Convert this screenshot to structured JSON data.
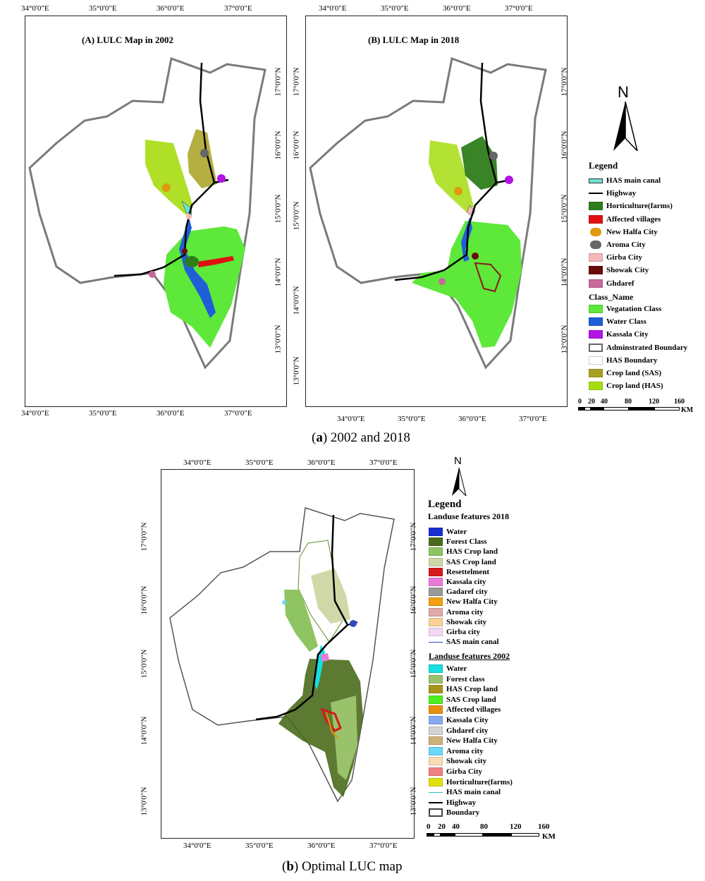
{
  "figure_a": {
    "caption_letter": "a",
    "caption_text": " 2002 and 2018",
    "maps": [
      {
        "title": "(A) LULC Map in 2002"
      },
      {
        "title": "(B) LULC Map in 2018"
      }
    ],
    "lon_ticks": [
      "34°0'0\"E",
      "35°0'0\"E",
      "36°0'0\"E",
      "37°0'0\"E"
    ],
    "lat_ticks": [
      "17°0'0\"N",
      "16°0'0\"N",
      "15°0'0\"N",
      "14°0'0\"N",
      "13°0'0\"N"
    ],
    "north": "N",
    "legend": {
      "title": "Legend",
      "items": [
        {
          "label": "HAS main canal",
          "kind": "canal",
          "color": "#6fe0d0"
        },
        {
          "label": "Highway",
          "kind": "line",
          "color": "#000000"
        },
        {
          "label": "Horticulture(farms)",
          "kind": "patch",
          "color": "#2e7d1a"
        },
        {
          "label": "Affected villages",
          "kind": "patch",
          "color": "#e01010"
        },
        {
          "label": "New Halfa City",
          "kind": "dot",
          "color": "#e09a10"
        },
        {
          "label": "Aroma City",
          "kind": "dot",
          "color": "#666666"
        },
        {
          "label": "Girba City",
          "kind": "patch",
          "color": "#f4b8b8"
        },
        {
          "label": "Showak City",
          "kind": "patch",
          "color": "#6b0b0b"
        },
        {
          "label": "Ghdaref",
          "kind": "patch",
          "color": "#c8699a"
        },
        {
          "label": "Class_Name",
          "kind": "header",
          "color": ""
        },
        {
          "label": "Vegatation Class",
          "kind": "patch",
          "color": "#5de83a"
        },
        {
          "label": "Water Class",
          "kind": "patch",
          "color": "#1f5fd6"
        },
        {
          "label": "Kassala City",
          "kind": "patch",
          "color": "#b214e6"
        },
        {
          "label": "Adminstrated Boundary",
          "kind": "outline",
          "color": "#666666"
        },
        {
          "label": "HAS Boundary",
          "kind": "outline-light",
          "color": "#cccccc"
        },
        {
          "label": "Crop land (SAS)",
          "kind": "patch",
          "color": "#a8a020"
        },
        {
          "label": "Crop land (HAS)",
          "kind": "patch",
          "color": "#a6dd10"
        }
      ]
    },
    "scale": {
      "labels": [
        "0",
        "20",
        "40",
        "80",
        "120",
        "160"
      ],
      "unit": "KM"
    }
  },
  "figure_b": {
    "caption_letter": "b",
    "caption_text": " Optimal LUC map",
    "lon_ticks": [
      "34°0'0\"E",
      "35°0'0\"E",
      "36°0'0\"E",
      "37°0'0\"E"
    ],
    "lat_ticks": [
      "17°0'0\"N",
      "16°0'0\"N",
      "15°0'0\"N",
      "14°0'0\"N",
      "13°0'0\"N"
    ],
    "north": "N",
    "legend": {
      "title": "Legend",
      "section_2018": "Landuse features 2018",
      "items_2018": [
        {
          "label": "Water",
          "kind": "patch",
          "color": "#1b2fd1"
        },
        {
          "label": "Forest Class",
          "kind": "patch",
          "color": "#4a6b1c"
        },
        {
          "label": "HAS Crop land",
          "kind": "patch",
          "color": "#8ec462"
        },
        {
          "label": "SAS Crop land",
          "kind": "patch",
          "color": "#cfd9a8"
        },
        {
          "label": "Resettelment",
          "kind": "patch",
          "color": "#d41a1a"
        },
        {
          "label": "Kassala city",
          "kind": "patch",
          "color": "#e87ad8"
        },
        {
          "label": "Gadaref city",
          "kind": "patch",
          "color": "#999999"
        },
        {
          "label": "New Halfa City",
          "kind": "patch",
          "color": "#f0a010"
        },
        {
          "label": "Aroma city",
          "kind": "patch",
          "color": "#e0a8a8"
        },
        {
          "label": "Showak city",
          "kind": "patch",
          "color": "#f8d098"
        },
        {
          "label": "Girba city",
          "kind": "patch",
          "color": "#f2d8f4"
        },
        {
          "label": "SAS main canal",
          "kind": "thin-line",
          "color": "#3048c0"
        }
      ],
      "section_2002": "Landuse features 2002",
      "items_2002": [
        {
          "label": "Water",
          "kind": "patch",
          "color": "#19dde0"
        },
        {
          "label": "Forest class",
          "kind": "patch",
          "color": "#9ac26a"
        },
        {
          "label": "HAS Crop land",
          "kind": "patch",
          "color": "#a89418"
        },
        {
          "label": "SAS Crop land",
          "kind": "patch",
          "color": "#4cf020"
        },
        {
          "label": "Affected villages",
          "kind": "patch",
          "color": "#e8900e"
        },
        {
          "label": "Kassala City",
          "kind": "patch",
          "color": "#86aaf0"
        },
        {
          "label": "Ghdaref city",
          "kind": "patch",
          "color": "#d4d4d4"
        },
        {
          "label": "New Halfa City",
          "kind": "patch",
          "color": "#d0b07a"
        },
        {
          "label": "Aroma city",
          "kind": "patch",
          "color": "#6ad8f8"
        },
        {
          "label": "Showak city",
          "kind": "patch",
          "color": "#f8dcb4"
        },
        {
          "label": "Girba City",
          "kind": "patch",
          "color": "#f08080"
        },
        {
          "label": "Horticulture(farms)",
          "kind": "patch",
          "color": "#e0e010"
        },
        {
          "label": "HAS main canal",
          "kind": "thin-line",
          "color": "#20c8d0"
        },
        {
          "label": "Highway",
          "kind": "line",
          "color": "#000000"
        },
        {
          "label": "Boundary",
          "kind": "outline",
          "color": "#444444"
        }
      ]
    },
    "scale": {
      "labels": [
        "0",
        "20",
        "40",
        "80",
        "120",
        "160"
      ],
      "unit": "KM"
    }
  }
}
